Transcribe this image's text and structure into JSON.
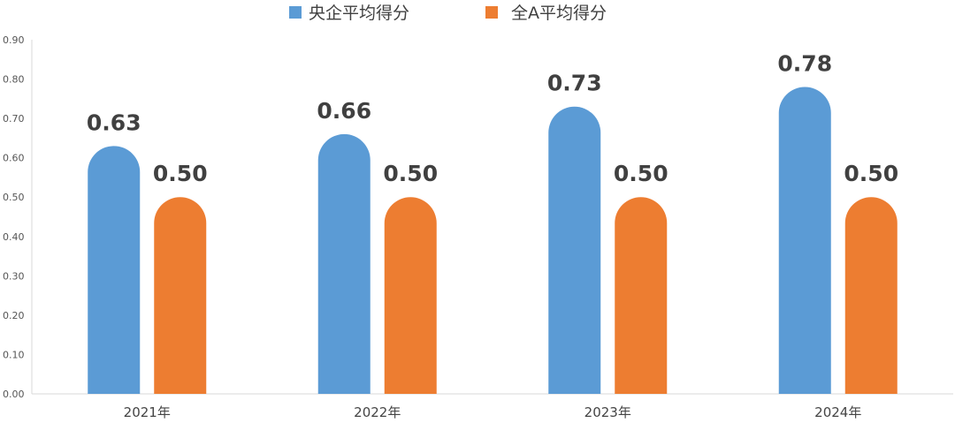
{
  "chart_data": {
    "type": "bar",
    "title": "",
    "xlabel": "",
    "ylabel": "",
    "categories": [
      "2021年",
      "2022年",
      "2023年",
      "2024年"
    ],
    "series": [
      {
        "name": "央企平均得分",
        "color": "#5b9bd5",
        "values": [
          0.63,
          0.66,
          0.73,
          0.78
        ],
        "labels": [
          "0.63",
          "0.66",
          "0.73",
          "0.78"
        ]
      },
      {
        "name": "全A平均得分",
        "color": "#ed7d31",
        "values": [
          0.5,
          0.5,
          0.5,
          0.5
        ],
        "labels": [
          "0.50",
          "0.50",
          "0.50",
          "0.50"
        ]
      }
    ],
    "ylim": [
      0,
      0.9
    ],
    "yticks": [
      "0.00",
      "0.10",
      "0.20",
      "0.30",
      "0.40",
      "0.50",
      "0.60",
      "0.70",
      "0.80",
      "0.90"
    ],
    "grid": false,
    "legend_position": "top-center",
    "bar_style": "rounded-top"
  }
}
